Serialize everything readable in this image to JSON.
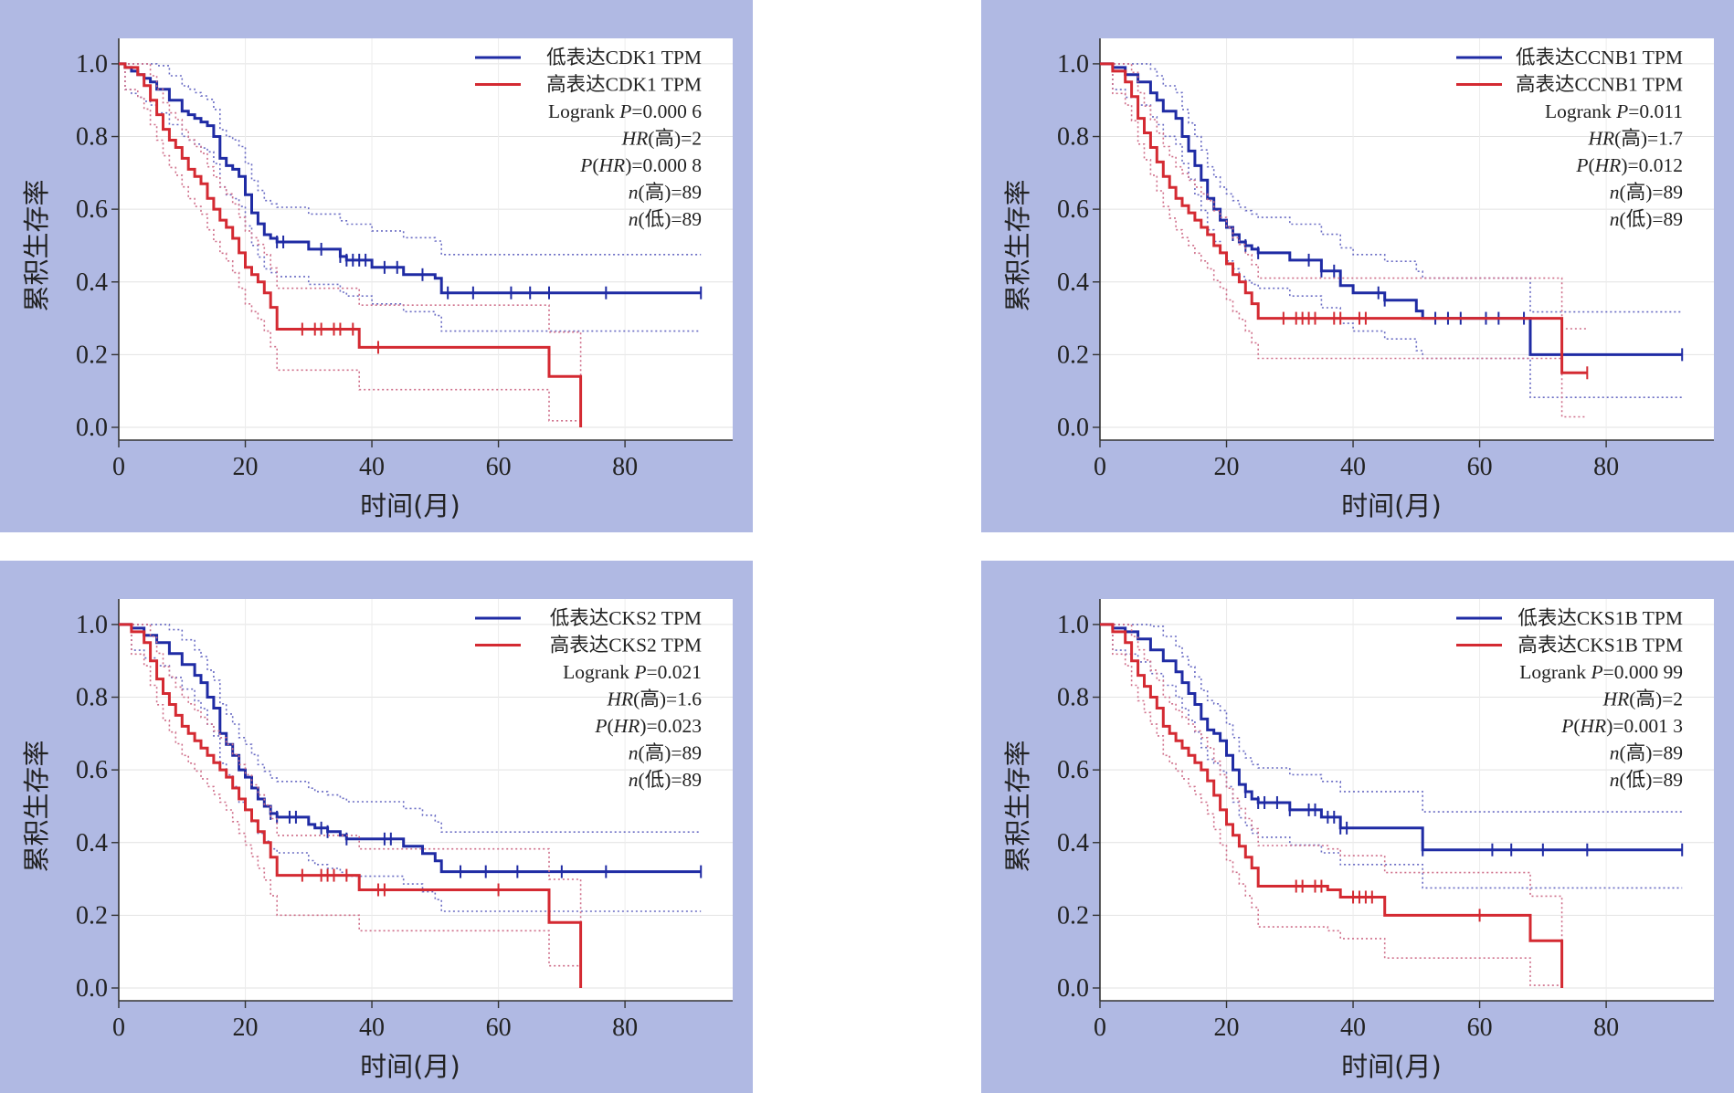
{
  "colors": {
    "low": "#1f2ba4",
    "high": "#d42a32",
    "low_ci": "#6a6cc4",
    "high_ci": "#cf6f8a",
    "panel_bg": "#b0b9e3"
  },
  "chart_data": [
    {
      "type": "line",
      "xlabel": "时间(月)",
      "ylabel": "累积生存率",
      "xlim": [
        0,
        95
      ],
      "ylim": [
        0,
        1.05
      ],
      "xticks": [
        "0",
        "20",
        "40",
        "60",
        "80"
      ],
      "yticks": [
        "0.0",
        "0.2",
        "0.4",
        "0.6",
        "0.8",
        "1.0"
      ],
      "legend_position": "top-right",
      "legend": [
        "低表达CDK1 TPM",
        "高表达CDK1 TPM"
      ],
      "stats": [
        {
          "pre": "Logrank ",
          "it": "P",
          "post": "=0.000 6"
        },
        {
          "pre": "",
          "it": "HR",
          "post": "(高)=2"
        },
        {
          "pre": "",
          "it": "P",
          "post": "(",
          "it2": "HR",
          "post2": ")=0.000 8"
        },
        {
          "pre": "",
          "it": "n",
          "post": "(高)=89"
        },
        {
          "pre": "",
          "it": "n",
          "post": "(低)=89"
        }
      ],
      "series": [
        {
          "name": "低表达CDK1 TPM",
          "group": "low",
          "x": [
            0,
            1,
            2,
            3,
            4,
            5,
            6,
            8,
            10,
            11,
            12,
            13,
            14,
            15,
            16,
            17,
            18,
            19,
            20,
            21,
            22,
            23,
            24,
            25,
            30,
            35,
            36,
            40,
            45,
            50,
            51,
            55,
            60,
            65,
            70,
            80,
            92
          ],
          "y": [
            1,
            0.99,
            0.98,
            0.97,
            0.96,
            0.95,
            0.93,
            0.9,
            0.87,
            0.86,
            0.85,
            0.84,
            0.83,
            0.8,
            0.74,
            0.72,
            0.71,
            0.69,
            0.64,
            0.59,
            0.56,
            0.53,
            0.52,
            0.51,
            0.49,
            0.47,
            0.46,
            0.44,
            0.42,
            0.41,
            0.37,
            0.37,
            0.37,
            0.37,
            0.37,
            0.37,
            0.37
          ],
          "censors": [
            25,
            26,
            32,
            35,
            36,
            37,
            38,
            39,
            42,
            44,
            48,
            52,
            56,
            62,
            65,
            68,
            77,
            92
          ]
        },
        {
          "name": "高表达CDK1 TPM",
          "group": "high",
          "x": [
            0,
            1,
            3,
            4,
            5,
            6,
            7,
            8,
            9,
            10,
            11,
            12,
            13,
            14,
            15,
            16,
            17,
            18,
            19,
            20,
            21,
            22,
            23,
            24,
            25,
            30,
            35,
            38,
            40,
            50,
            60,
            67,
            68,
            72,
            73
          ],
          "y": [
            1,
            0.99,
            0.97,
            0.94,
            0.9,
            0.86,
            0.82,
            0.79,
            0.77,
            0.74,
            0.71,
            0.69,
            0.67,
            0.63,
            0.6,
            0.57,
            0.55,
            0.52,
            0.48,
            0.44,
            0.42,
            0.4,
            0.37,
            0.33,
            0.27,
            0.27,
            0.27,
            0.22,
            0.22,
            0.22,
            0.22,
            0.22,
            0.14,
            0.14,
            0.0
          ],
          "censors": [
            29,
            31,
            32,
            34,
            35,
            37,
            41
          ]
        }
      ]
    },
    {
      "type": "line",
      "xlabel": "时间(月)",
      "ylabel": "累积生存率",
      "xlim": [
        0,
        95
      ],
      "ylim": [
        0,
        1.05
      ],
      "xticks": [
        "0",
        "20",
        "40",
        "60",
        "80"
      ],
      "yticks": [
        "0.0",
        "0.2",
        "0.4",
        "0.6",
        "0.8",
        "1.0"
      ],
      "legend_position": "top-right",
      "legend": [
        "低表达CCNB1 TPM",
        "高表达CCNB1 TPM"
      ],
      "stats": [
        {
          "pre": "Logrank ",
          "it": "P",
          "post": "=0.011"
        },
        {
          "pre": "",
          "it": "HR",
          "post": "(高)=1.7"
        },
        {
          "pre": "",
          "it": "P",
          "post": "(",
          "it2": "HR",
          "post2": ")=0.012"
        },
        {
          "pre": "",
          "it": "n",
          "post": "(高)=89"
        },
        {
          "pre": "",
          "it": "n",
          "post": "(低)=89"
        }
      ],
      "series": [
        {
          "name": "低表达CCNB1 TPM",
          "group": "low",
          "x": [
            0,
            2,
            4,
            6,
            8,
            9,
            10,
            12,
            13,
            14,
            15,
            16,
            17,
            18,
            19,
            20,
            21,
            22,
            23,
            24,
            25,
            26,
            30,
            35,
            38,
            40,
            45,
            50,
            51,
            55,
            60,
            65,
            68,
            75,
            80,
            92
          ],
          "y": [
            1,
            0.99,
            0.97,
            0.95,
            0.92,
            0.9,
            0.87,
            0.85,
            0.8,
            0.76,
            0.72,
            0.68,
            0.63,
            0.6,
            0.57,
            0.55,
            0.53,
            0.51,
            0.5,
            0.49,
            0.48,
            0.48,
            0.46,
            0.43,
            0.39,
            0.37,
            0.35,
            0.32,
            0.3,
            0.3,
            0.3,
            0.3,
            0.2,
            0.2,
            0.2,
            0.2
          ],
          "censors": [
            21,
            23,
            25,
            33,
            35,
            37,
            44,
            45,
            53,
            55,
            57,
            61,
            63,
            67,
            92
          ]
        },
        {
          "name": "高表达CCNB1 TPM",
          "group": "high",
          "x": [
            0,
            2,
            4,
            5,
            6,
            7,
            8,
            9,
            10,
            11,
            12,
            13,
            14,
            15,
            16,
            17,
            18,
            19,
            20,
            21,
            22,
            23,
            24,
            25,
            30,
            40,
            50,
            60,
            68,
            72,
            73,
            77
          ],
          "y": [
            1,
            0.98,
            0.95,
            0.91,
            0.85,
            0.81,
            0.77,
            0.73,
            0.69,
            0.66,
            0.63,
            0.61,
            0.59,
            0.57,
            0.55,
            0.53,
            0.5,
            0.48,
            0.45,
            0.42,
            0.4,
            0.37,
            0.34,
            0.3,
            0.3,
            0.3,
            0.3,
            0.3,
            0.3,
            0.3,
            0.15,
            0.15
          ],
          "censors": [
            29,
            31,
            32,
            33,
            34,
            37,
            38,
            41,
            42,
            77
          ]
        }
      ]
    },
    {
      "type": "line",
      "xlabel": "时间(月)",
      "ylabel": "累积生存率",
      "xlim": [
        0,
        95
      ],
      "ylim": [
        0,
        1.05
      ],
      "xticks": [
        "0",
        "20",
        "40",
        "60",
        "80"
      ],
      "yticks": [
        "0.0",
        "0.2",
        "0.4",
        "0.6",
        "0.8",
        "1.0"
      ],
      "legend_position": "top-right",
      "legend": [
        "低表达CKS2 TPM",
        "高表达CKS2 TPM"
      ],
      "stats": [
        {
          "pre": "Logrank ",
          "it": "P",
          "post": "=0.021"
        },
        {
          "pre": "",
          "it": "HR",
          "post": "(高)=1.6"
        },
        {
          "pre": "",
          "it": "P",
          "post": "(",
          "it2": "HR",
          "post2": ")=0.023"
        },
        {
          "pre": "",
          "it": "n",
          "post": "(高)=89"
        },
        {
          "pre": "",
          "it": "n",
          "post": "(低)=89"
        }
      ],
      "series": [
        {
          "name": "低表达CKS2 TPM",
          "group": "low",
          "x": [
            0,
            2,
            4,
            6,
            8,
            10,
            12,
            13,
            14,
            15,
            16,
            17,
            18,
            19,
            20,
            21,
            22,
            23,
            24,
            25,
            30,
            31,
            33,
            35,
            36,
            40,
            45,
            48,
            50,
            51,
            55,
            60,
            65,
            70,
            80,
            92
          ],
          "y": [
            1,
            0.99,
            0.97,
            0.95,
            0.92,
            0.89,
            0.86,
            0.84,
            0.8,
            0.77,
            0.7,
            0.67,
            0.64,
            0.6,
            0.58,
            0.55,
            0.52,
            0.5,
            0.48,
            0.47,
            0.45,
            0.44,
            0.43,
            0.42,
            0.41,
            0.41,
            0.39,
            0.37,
            0.35,
            0.32,
            0.32,
            0.32,
            0.32,
            0.32,
            0.32,
            0.32
          ],
          "censors": [
            24,
            25,
            27,
            28,
            32,
            33,
            36,
            42,
            43,
            54,
            58,
            63,
            70,
            77,
            92
          ]
        },
        {
          "name": "高表达CKS2 TPM",
          "group": "high",
          "x": [
            0,
            2,
            4,
            5,
            6,
            7,
            8,
            9,
            10,
            11,
            12,
            13,
            14,
            15,
            16,
            17,
            18,
            19,
            20,
            21,
            22,
            23,
            24,
            25,
            30,
            38,
            40,
            50,
            60,
            67,
            68,
            72,
            73
          ],
          "y": [
            1,
            0.98,
            0.95,
            0.9,
            0.85,
            0.81,
            0.78,
            0.75,
            0.72,
            0.7,
            0.68,
            0.66,
            0.64,
            0.62,
            0.6,
            0.58,
            0.55,
            0.52,
            0.49,
            0.46,
            0.43,
            0.4,
            0.36,
            0.31,
            0.31,
            0.27,
            0.27,
            0.27,
            0.27,
            0.27,
            0.18,
            0.18,
            0.0
          ],
          "censors": [
            29,
            32,
            33,
            34,
            36,
            41,
            42,
            60
          ]
        }
      ]
    },
    {
      "type": "line",
      "xlabel": "时间(月)",
      "ylabel": "累积生存率",
      "xlim": [
        0,
        95
      ],
      "ylim": [
        0,
        1.05
      ],
      "xticks": [
        "0",
        "20",
        "40",
        "60",
        "80"
      ],
      "yticks": [
        "0.0",
        "0.2",
        "0.4",
        "0.6",
        "0.8",
        "1.0"
      ],
      "legend_position": "top-right",
      "legend": [
        "低表达CKS1B TPM",
        "高表达CKS1B TPM"
      ],
      "stats": [
        {
          "pre": "Logrank ",
          "it": "P",
          "post": "=0.000 99"
        },
        {
          "pre": "",
          "it": "HR",
          "post": "(高)=2"
        },
        {
          "pre": "",
          "it": "P",
          "post": "(",
          "it2": "HR",
          "post2": ")=0.001 3"
        },
        {
          "pre": "",
          "it": "n",
          "post": "(高)=89"
        },
        {
          "pre": "",
          "it": "n",
          "post": "(低)=89"
        }
      ],
      "series": [
        {
          "name": "低表达CKS1B TPM",
          "group": "low",
          "x": [
            0,
            2,
            4,
            6,
            8,
            10,
            12,
            13,
            14,
            15,
            16,
            17,
            18,
            19,
            20,
            21,
            22,
            23,
            24,
            25,
            30,
            35,
            38,
            40,
            45,
            50,
            51,
            55,
            60,
            65,
            70,
            80,
            92
          ],
          "y": [
            1,
            0.99,
            0.98,
            0.96,
            0.93,
            0.9,
            0.87,
            0.84,
            0.81,
            0.78,
            0.74,
            0.71,
            0.7,
            0.68,
            0.64,
            0.6,
            0.56,
            0.54,
            0.52,
            0.51,
            0.49,
            0.47,
            0.44,
            0.44,
            0.44,
            0.44,
            0.38,
            0.38,
            0.38,
            0.38,
            0.38,
            0.38,
            0.38
          ],
          "censors": [
            23,
            25,
            26,
            28,
            30,
            33,
            34,
            36,
            37,
            38,
            39,
            51,
            62,
            65,
            70,
            77,
            92
          ]
        },
        {
          "name": "高表达CKS1B TPM",
          "group": "high",
          "x": [
            0,
            2,
            4,
            5,
            6,
            7,
            8,
            9,
            10,
            11,
            12,
            13,
            14,
            15,
            16,
            17,
            18,
            19,
            20,
            21,
            22,
            23,
            24,
            25,
            30,
            36,
            38,
            40,
            45,
            50,
            60,
            67,
            68,
            72,
            73
          ],
          "y": [
            1,
            0.98,
            0.95,
            0.9,
            0.86,
            0.83,
            0.8,
            0.77,
            0.72,
            0.7,
            0.68,
            0.66,
            0.64,
            0.62,
            0.6,
            0.57,
            0.53,
            0.49,
            0.45,
            0.42,
            0.39,
            0.36,
            0.33,
            0.28,
            0.28,
            0.27,
            0.25,
            0.25,
            0.2,
            0.2,
            0.2,
            0.2,
            0.13,
            0.13,
            0.0
          ],
          "censors": [
            31,
            32,
            34,
            35,
            40,
            41,
            42,
            43,
            60
          ]
        }
      ]
    }
  ]
}
